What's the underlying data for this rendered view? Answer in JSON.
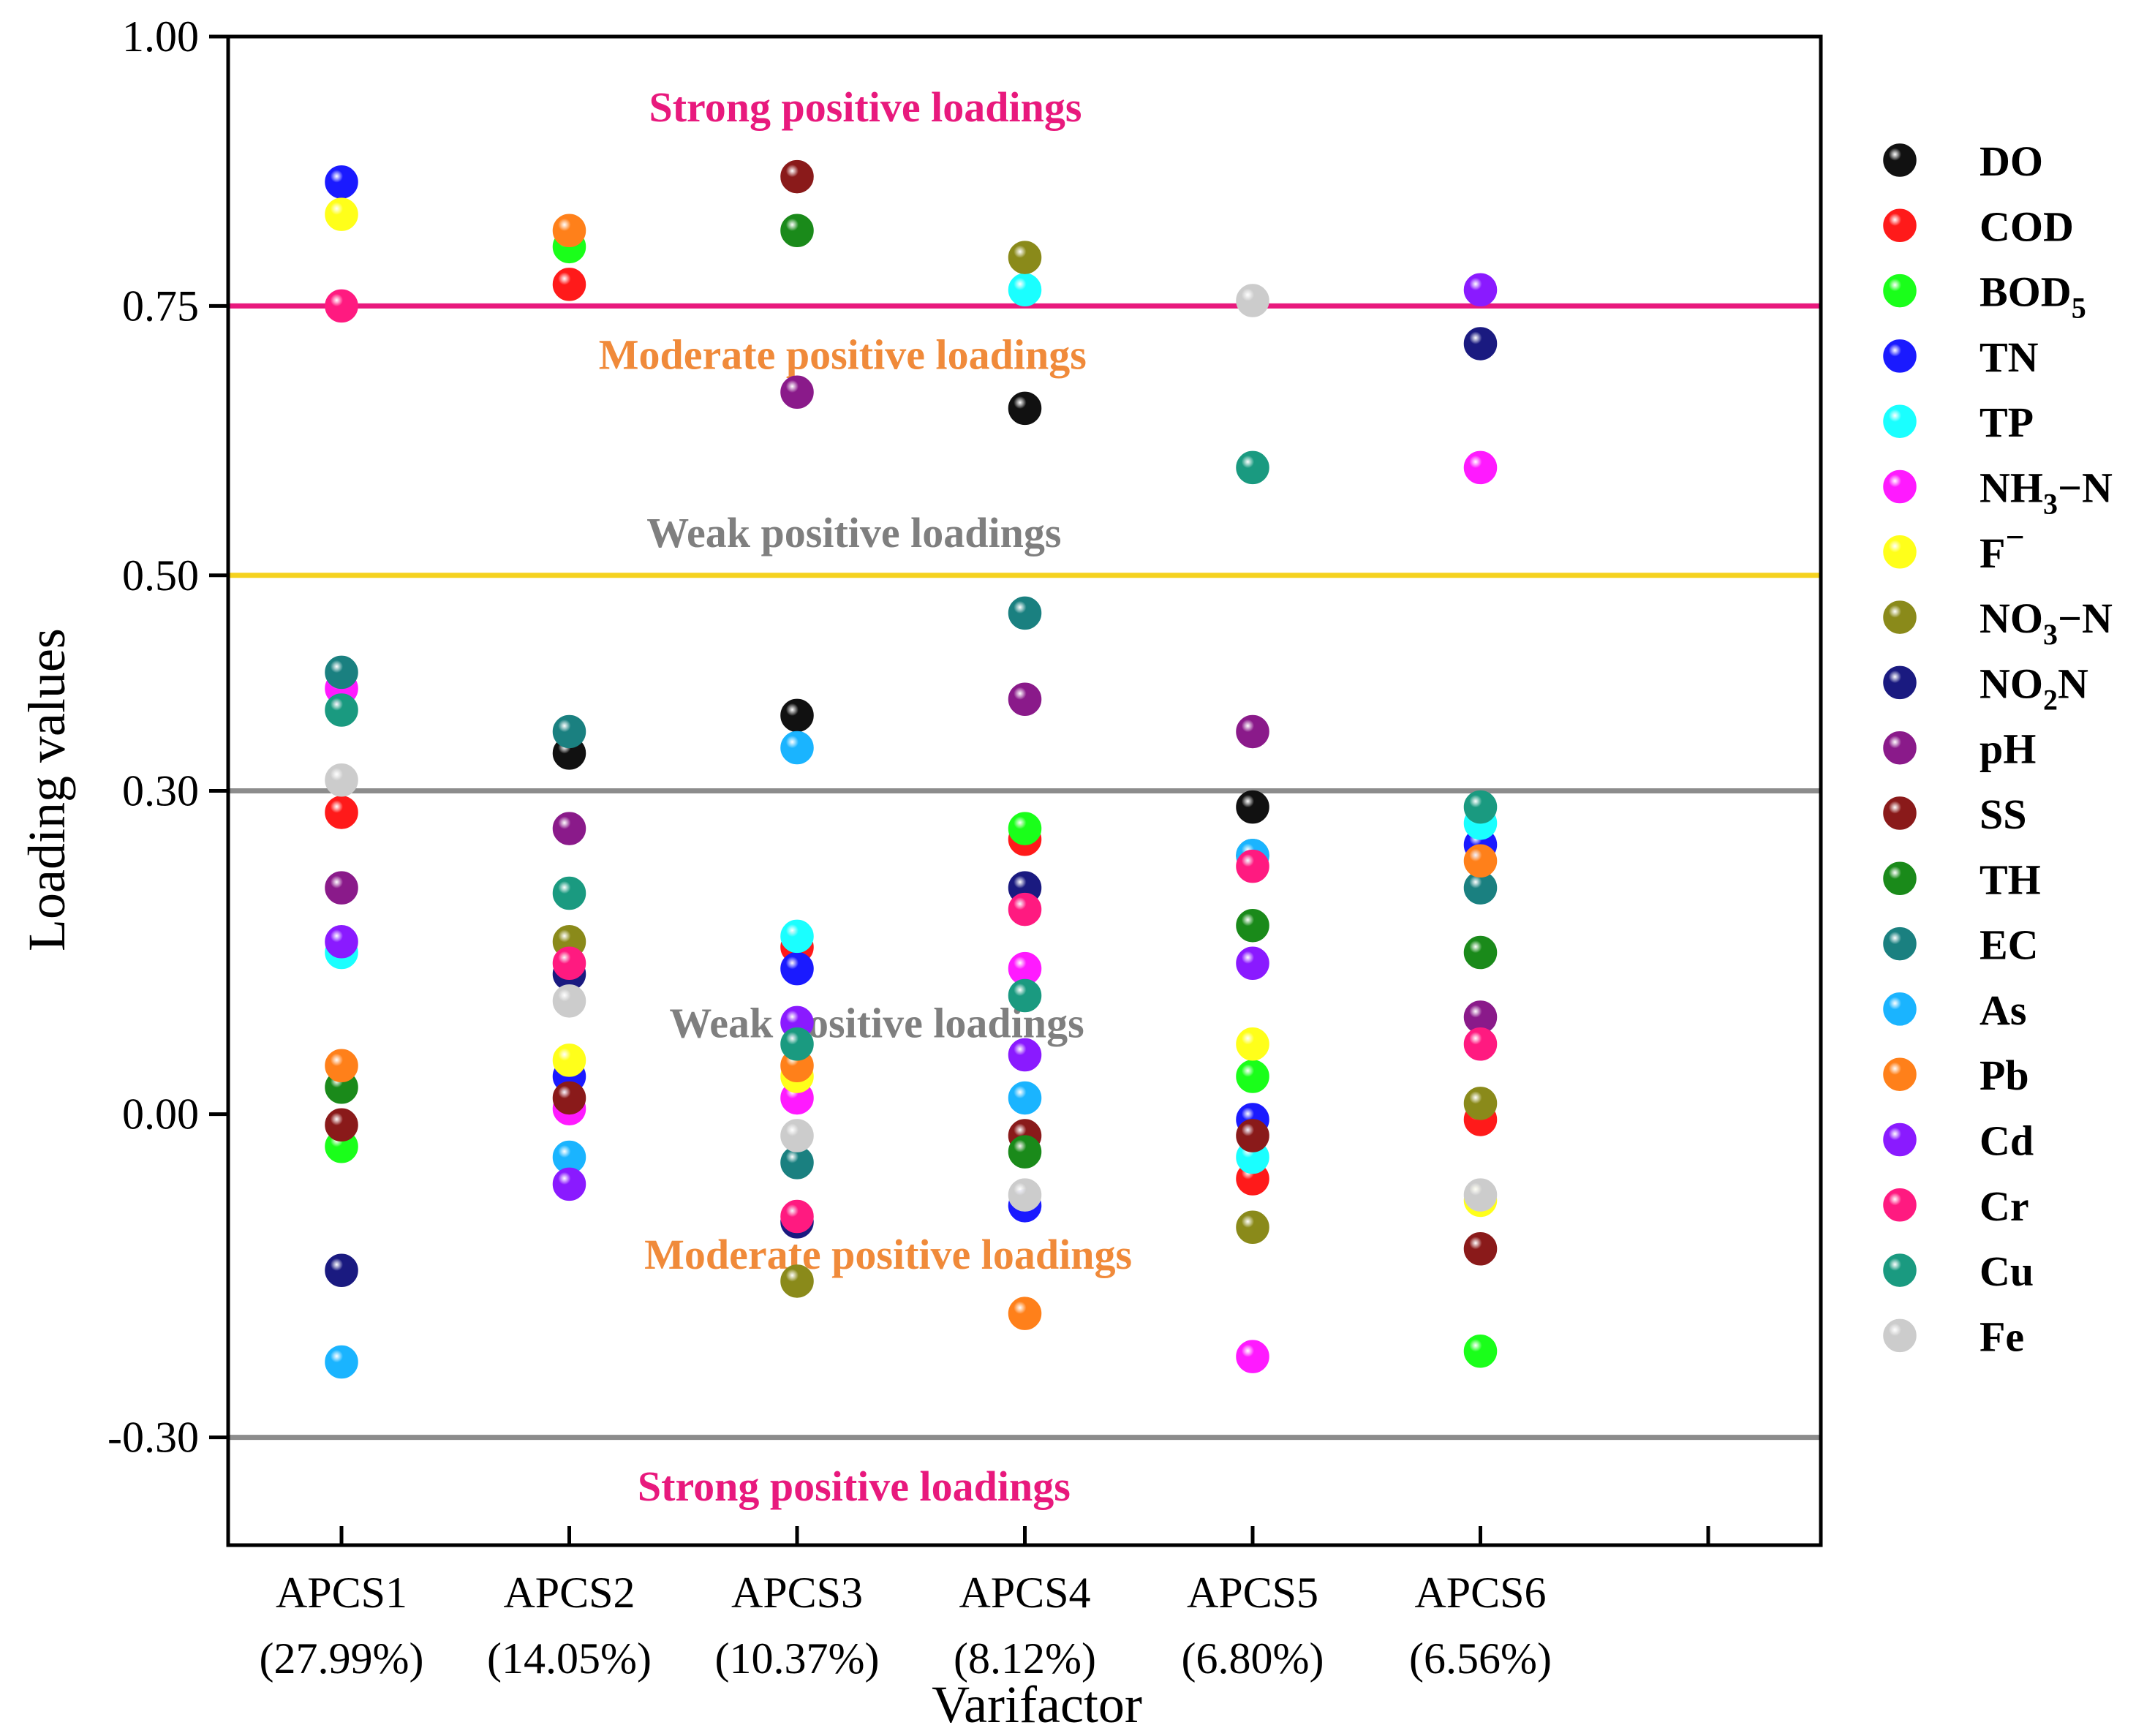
{
  "chart_data": {
    "type": "scatter",
    "xlabel": "Varifactor",
    "ylabel": "Loading  values",
    "categories": [
      {
        "name": "APCS1",
        "pct": "(27.99%)"
      },
      {
        "name": "APCS2",
        "pct": "(14.05%)"
      },
      {
        "name": "APCS3",
        "pct": "(10.37%)"
      },
      {
        "name": "APCS4",
        "pct": "(8.12%)"
      },
      {
        "name": "APCS5",
        "pct": "(6.80%)"
      },
      {
        "name": "APCS6",
        "pct": "(6.56%)"
      }
    ],
    "ylim": [
      -0.4,
      1.0
    ],
    "yticks": [
      "1.00",
      "0.75",
      "0.50",
      "0.30",
      "0.00",
      "-0.30"
    ],
    "ytick_values": [
      1.0,
      0.75,
      0.5,
      0.3,
      0.0,
      -0.3
    ],
    "grid": false,
    "legend_position": "right",
    "reference_lines": [
      {
        "y": 0.75,
        "color": "#e8197d"
      },
      {
        "y": 0.5,
        "color": "#f5d21f"
      },
      {
        "y": 0.3,
        "color": "#8c8c8c"
      },
      {
        "y": -0.3,
        "color": "#8c8c8c"
      }
    ],
    "annotations": [
      {
        "text": "Strong positive loadings",
        "x": 3.3,
        "y": 0.935,
        "color": "#e8197d"
      },
      {
        "text": "Moderate positive loadings",
        "x": 3.2,
        "y": 0.705,
        "color": "#f08a3a"
      },
      {
        "text": "Weak positive loadings",
        "x": 3.25,
        "y": 0.54,
        "color": "#7f7f7f"
      },
      {
        "text": "Weak positive loadings",
        "x": 3.35,
        "y": 0.085,
        "color": "#7f7f7f"
      },
      {
        "text": "Moderate positive loadings",
        "x": 3.4,
        "y": -0.13,
        "color": "#f08a3a"
      },
      {
        "text": "Strong positive loadings",
        "x": 3.25,
        "y": -0.345,
        "color": "#e8197d"
      }
    ],
    "series": [
      {
        "name": "DO",
        "sub": "",
        "sup": "",
        "tail": "",
        "color": "#111111",
        "values": [
          null,
          0.335,
          0.37,
          0.655,
          0.285,
          null
        ]
      },
      {
        "name": "COD",
        "sub": "",
        "sup": "",
        "tail": "",
        "color": "#ff1a1a",
        "values": [
          0.28,
          0.77,
          0.155,
          0.255,
          -0.06,
          -0.005
        ]
      },
      {
        "name": "BOD",
        "sub": "5",
        "sup": "",
        "tail": "",
        "color": "#1aff1a",
        "values": [
          -0.03,
          0.805,
          null,
          0.265,
          0.035,
          -0.22
        ]
      },
      {
        "name": "TN",
        "sub": "",
        "sup": "",
        "tail": "",
        "color": "#1a1aff",
        "values": [
          0.865,
          0.035,
          0.135,
          -0.085,
          -0.005,
          0.25
        ]
      },
      {
        "name": "TP",
        "sub": "",
        "sup": "",
        "tail": "",
        "color": "#1affff",
        "values": [
          0.15,
          null,
          0.165,
          0.765,
          -0.04,
          0.27
        ]
      },
      {
        "name": "NH",
        "sub": "3",
        "sup": "",
        "tail": "−N",
        "color": "#ff1aff",
        "values": [
          0.395,
          0.005,
          0.015,
          0.135,
          -0.225,
          0.6
        ]
      },
      {
        "name": "F",
        "sub": "",
        "sup": "−",
        "tail": "",
        "color": "#ffff1a",
        "values": [
          0.835,
          0.05,
          0.035,
          null,
          0.065,
          -0.08
        ]
      },
      {
        "name": "NO",
        "sub": "3",
        "sup": "",
        "tail": "−N",
        "color": "#8a8a1a",
        "values": [
          null,
          0.16,
          -0.155,
          0.795,
          -0.105,
          0.01
        ]
      },
      {
        "name": "NO",
        "sub": "2",
        "sup": "",
        "tail": "N",
        "color": "#1a1a80",
        "values": [
          -0.145,
          0.13,
          -0.1,
          0.21,
          null,
          0.715
        ]
      },
      {
        "name": "pH",
        "sub": "",
        "sup": "",
        "tail": "",
        "color": "#8a1a8a",
        "values": [
          0.21,
          0.265,
          0.67,
          0.385,
          0.355,
          0.09
        ]
      },
      {
        "name": "SS",
        "sub": "",
        "sup": "",
        "tail": "",
        "color": "#8a1a1a",
        "values": [
          -0.01,
          0.015,
          0.87,
          -0.02,
          -0.02,
          -0.125
        ]
      },
      {
        "name": "TH",
        "sub": "",
        "sup": "",
        "tail": "",
        "color": "#1a8a1a",
        "values": [
          0.025,
          null,
          0.82,
          -0.035,
          0.175,
          0.15
        ]
      },
      {
        "name": "EC",
        "sub": "",
        "sup": "",
        "tail": "",
        "color": "#1a8080",
        "values": [
          0.41,
          0.355,
          -0.045,
          0.465,
          0.24,
          0.21
        ]
      },
      {
        "name": "As",
        "sub": "",
        "sup": "",
        "tail": "",
        "color": "#1ab4ff",
        "values": [
          -0.23,
          -0.04,
          0.34,
          0.015,
          0.24,
          null
        ]
      },
      {
        "name": "Pb",
        "sub": "",
        "sup": "",
        "tail": "",
        "color": "#ff801a",
        "values": [
          0.045,
          0.82,
          0.045,
          -0.185,
          null,
          0.235
        ]
      },
      {
        "name": "Cd",
        "sub": "",
        "sup": "",
        "tail": "",
        "color": "#8a1aff",
        "values": [
          0.16,
          -0.065,
          0.085,
          0.055,
          0.14,
          0.765
        ]
      },
      {
        "name": "Cr",
        "sub": "",
        "sup": "",
        "tail": "",
        "color": "#ff1a80",
        "values": [
          0.75,
          0.14,
          -0.095,
          0.19,
          0.23,
          0.065
        ]
      },
      {
        "name": "Cu",
        "sub": "",
        "sup": "",
        "tail": "",
        "color": "#1a9a80",
        "values": [
          0.375,
          0.205,
          0.065,
          0.11,
          0.6,
          0.285
        ]
      },
      {
        "name": "Fe",
        "sub": "",
        "sup": "",
        "tail": "",
        "color": "#cccccc",
        "values": [
          0.31,
          0.105,
          -0.02,
          -0.075,
          0.755,
          -0.075
        ]
      }
    ]
  }
}
